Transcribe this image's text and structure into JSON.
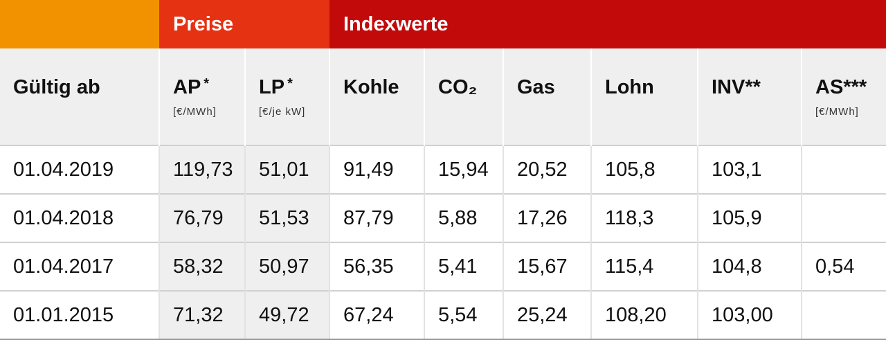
{
  "group_headers": [
    "Preise",
    "Indexwerte"
  ],
  "columns": [
    {
      "label": "Gültig ab"
    },
    {
      "label": "AP",
      "mark": "*",
      "unit": "[€/MWh]"
    },
    {
      "label": "LP",
      "mark": "*",
      "unit": "[€/je kW]"
    },
    {
      "label": "Kohle"
    },
    {
      "label": "CO₂"
    },
    {
      "label": "Gas"
    },
    {
      "label": "Lohn"
    },
    {
      "label": "INV**"
    },
    {
      "label": "AS***",
      "unit": "[€/MWh]"
    }
  ],
  "rows": [
    [
      "01.04.2019",
      "119,73",
      "51,01",
      "91,49",
      "15,94",
      "20,52",
      "105,8",
      "103,1",
      null
    ],
    [
      "01.04.2018",
      "76,79",
      "51,53",
      "87,79",
      "5,88",
      "17,26",
      "118,3",
      "105,9",
      null
    ],
    [
      "01.04.2017",
      "58,32",
      "50,97",
      "56,35",
      "5,41",
      "15,67",
      "115,4",
      "104,8",
      "0,54"
    ],
    [
      "01.01.2015",
      "71,32",
      "49,72",
      "67,24",
      "5,54",
      "25,24",
      "108,20",
      "103,00",
      null
    ]
  ]
}
